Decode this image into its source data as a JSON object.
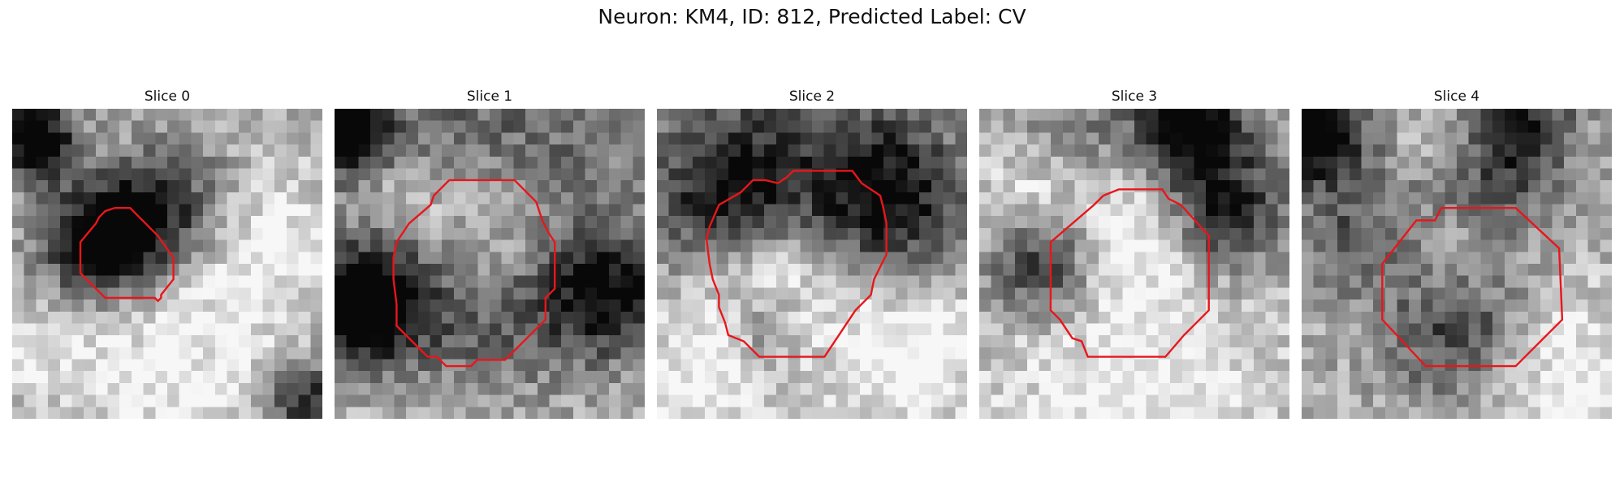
{
  "figure": {
    "title": "Neuron: KM4, ID: 812, Predicted Label: CV"
  },
  "colors": {
    "contour": "#e8161b",
    "background": "#ffffff"
  },
  "panels": [
    {
      "title": "Slice 0",
      "seed": 11,
      "dark_blobs": [
        [
          0.07,
          0.1,
          0.09,
          0.85
        ],
        [
          0.37,
          0.38,
          0.12,
          0.55
        ],
        [
          0.26,
          0.47,
          0.14,
          0.6
        ],
        [
          0.55,
          0.3,
          0.14,
          0.4
        ],
        [
          0.95,
          0.95,
          0.1,
          0.6
        ]
      ],
      "light_blobs": [
        [
          0.55,
          0.82,
          0.28,
          0.25
        ],
        [
          0.8,
          0.4,
          0.18,
          0.25
        ],
        [
          0.12,
          0.7,
          0.15,
          0.2
        ]
      ],
      "contour": [
        [
          0.33,
          0.32
        ],
        [
          0.38,
          0.32
        ],
        [
          0.47,
          0.41
        ],
        [
          0.52,
          0.48
        ],
        [
          0.52,
          0.55
        ],
        [
          0.48,
          0.6
        ],
        [
          0.48,
          0.61
        ],
        [
          0.47,
          0.62
        ],
        [
          0.46,
          0.61
        ],
        [
          0.3,
          0.61
        ],
        [
          0.22,
          0.53
        ],
        [
          0.22,
          0.43
        ],
        [
          0.27,
          0.37
        ],
        [
          0.28,
          0.35
        ],
        [
          0.3,
          0.33
        ],
        [
          0.33,
          0.32
        ]
      ]
    },
    {
      "title": "Slice 1",
      "seed": 27,
      "dark_blobs": [
        [
          0.05,
          0.07,
          0.1,
          0.7
        ],
        [
          0.09,
          0.63,
          0.13,
          0.85
        ],
        [
          0.5,
          0.66,
          0.3,
          0.55
        ],
        [
          0.88,
          0.6,
          0.13,
          0.55
        ],
        [
          0.5,
          0.2,
          0.34,
          0.35
        ]
      ],
      "light_blobs": [
        [
          0.5,
          0.38,
          0.18,
          0.55
        ],
        [
          0.2,
          0.28,
          0.12,
          0.3
        ],
        [
          0.5,
          0.88,
          0.35,
          0.3
        ]
      ],
      "contour": [
        [
          0.37,
          0.23
        ],
        [
          0.58,
          0.23
        ],
        [
          0.65,
          0.3
        ],
        [
          0.67,
          0.36
        ],
        [
          0.69,
          0.4
        ],
        [
          0.71,
          0.43
        ],
        [
          0.71,
          0.58
        ],
        [
          0.68,
          0.61
        ],
        [
          0.68,
          0.68
        ],
        [
          0.55,
          0.81
        ],
        [
          0.46,
          0.81
        ],
        [
          0.44,
          0.83
        ],
        [
          0.36,
          0.83
        ],
        [
          0.33,
          0.8
        ],
        [
          0.3,
          0.8
        ],
        [
          0.2,
          0.7
        ],
        [
          0.2,
          0.67
        ],
        [
          0.2,
          0.63
        ],
        [
          0.19,
          0.55
        ],
        [
          0.19,
          0.48
        ],
        [
          0.2,
          0.43
        ],
        [
          0.24,
          0.37
        ],
        [
          0.31,
          0.31
        ],
        [
          0.32,
          0.28
        ],
        [
          0.37,
          0.23
        ]
      ]
    },
    {
      "title": "Slice 2",
      "seed": 43,
      "dark_blobs": [
        [
          0.22,
          0.27,
          0.16,
          0.55
        ],
        [
          0.75,
          0.3,
          0.17,
          0.55
        ],
        [
          0.5,
          0.15,
          0.28,
          0.3
        ],
        [
          0.35,
          0.7,
          0.1,
          0.35
        ]
      ],
      "light_blobs": [
        [
          0.38,
          0.55,
          0.16,
          0.4
        ],
        [
          0.8,
          0.78,
          0.2,
          0.35
        ],
        [
          0.15,
          0.85,
          0.15,
          0.3
        ]
      ],
      "contour": [
        [
          0.39,
          0.24
        ],
        [
          0.42,
          0.22
        ],
        [
          0.44,
          0.2
        ],
        [
          0.63,
          0.2
        ],
        [
          0.66,
          0.24
        ],
        [
          0.72,
          0.28
        ],
        [
          0.73,
          0.32
        ],
        [
          0.74,
          0.37
        ],
        [
          0.74,
          0.47
        ],
        [
          0.72,
          0.51
        ],
        [
          0.7,
          0.55
        ],
        [
          0.69,
          0.6
        ],
        [
          0.64,
          0.65
        ],
        [
          0.54,
          0.8
        ],
        [
          0.33,
          0.8
        ],
        [
          0.28,
          0.75
        ],
        [
          0.23,
          0.73
        ],
        [
          0.22,
          0.69
        ],
        [
          0.2,
          0.64
        ],
        [
          0.2,
          0.6
        ],
        [
          0.18,
          0.55
        ],
        [
          0.17,
          0.5
        ],
        [
          0.16,
          0.42
        ],
        [
          0.17,
          0.38
        ],
        [
          0.2,
          0.31
        ],
        [
          0.27,
          0.27
        ],
        [
          0.31,
          0.23
        ],
        [
          0.35,
          0.23
        ],
        [
          0.39,
          0.24
        ]
      ]
    },
    {
      "title": "Slice 3",
      "seed": 59,
      "dark_blobs": [
        [
          0.69,
          0.05,
          0.1,
          0.65
        ],
        [
          0.78,
          0.33,
          0.14,
          0.55
        ],
        [
          0.2,
          0.5,
          0.12,
          0.55
        ],
        [
          0.5,
          0.13,
          0.3,
          0.3
        ]
      ],
      "light_blobs": [
        [
          0.52,
          0.37,
          0.16,
          0.45
        ],
        [
          0.15,
          0.28,
          0.14,
          0.3
        ],
        [
          0.5,
          0.9,
          0.35,
          0.3
        ]
      ],
      "contour": [
        [
          0.4,
          0.28
        ],
        [
          0.45,
          0.26
        ],
        [
          0.59,
          0.26
        ],
        [
          0.61,
          0.29
        ],
        [
          0.65,
          0.31
        ],
        [
          0.74,
          0.41
        ],
        [
          0.74,
          0.65
        ],
        [
          0.66,
          0.73
        ],
        [
          0.6,
          0.8
        ],
        [
          0.35,
          0.8
        ],
        [
          0.33,
          0.75
        ],
        [
          0.3,
          0.74
        ],
        [
          0.26,
          0.68
        ],
        [
          0.23,
          0.65
        ],
        [
          0.23,
          0.43
        ],
        [
          0.37,
          0.31
        ],
        [
          0.4,
          0.28
        ]
      ]
    },
    {
      "title": "Slice 4",
      "seed": 77,
      "dark_blobs": [
        [
          0.05,
          0.08,
          0.11,
          0.8
        ],
        [
          0.7,
          0.04,
          0.12,
          0.5
        ],
        [
          0.55,
          0.25,
          0.18,
          0.45
        ],
        [
          0.5,
          0.7,
          0.16,
          0.5
        ],
        [
          0.15,
          0.4,
          0.14,
          0.3
        ]
      ],
      "light_blobs": [
        [
          0.5,
          0.45,
          0.14,
          0.3
        ],
        [
          0.45,
          0.12,
          0.12,
          0.3
        ],
        [
          0.85,
          0.85,
          0.2,
          0.3
        ]
      ],
      "contour": [
        [
          0.45,
          0.32
        ],
        [
          0.69,
          0.32
        ],
        [
          0.83,
          0.45
        ],
        [
          0.84,
          0.68
        ],
        [
          0.69,
          0.83
        ],
        [
          0.4,
          0.83
        ],
        [
          0.26,
          0.68
        ],
        [
          0.26,
          0.5
        ],
        [
          0.37,
          0.36
        ],
        [
          0.43,
          0.36
        ],
        [
          0.45,
          0.32
        ]
      ]
    }
  ]
}
